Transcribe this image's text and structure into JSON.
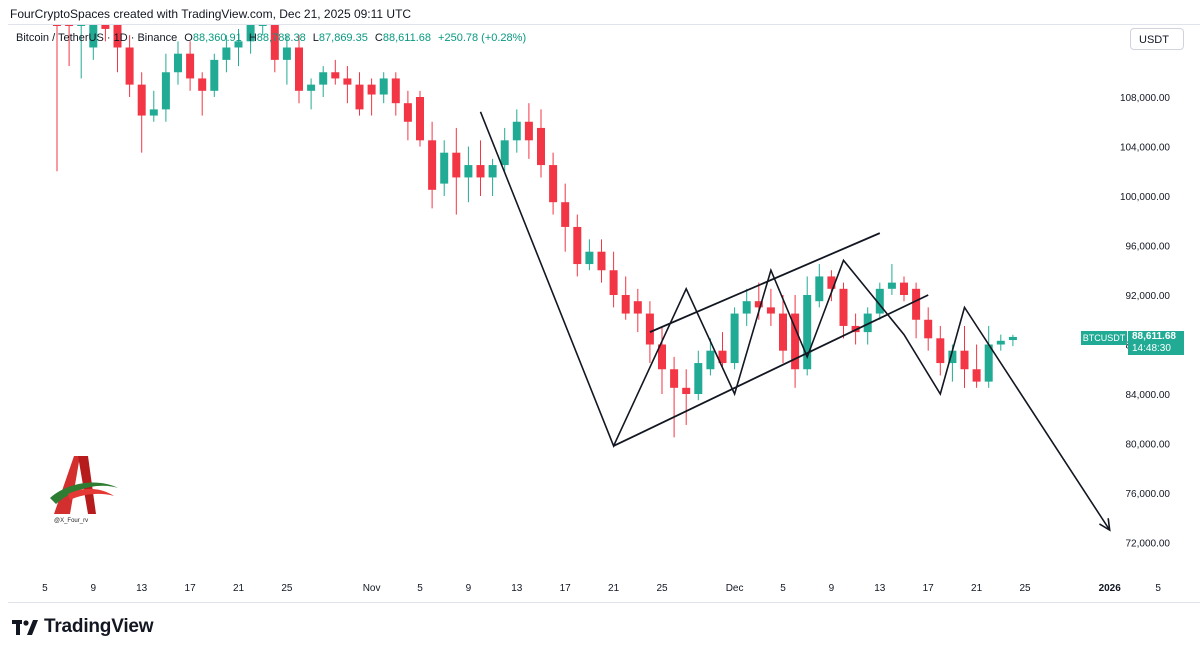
{
  "header": {
    "attribution": "FourCryptoSpaces created with TradingView.com, Dec 21, 2025 09:11 UTC"
  },
  "legend": {
    "symbol": "Bitcoin / TetherUS · 1D · Binance",
    "open_label": "O",
    "open": "88,360.91",
    "high_label": "H",
    "high": "88,788.38",
    "low_label": "L",
    "low": "87,869.35",
    "close_label": "C",
    "close": "88,611.68",
    "change": "+250.78 (+0.28%)"
  },
  "unit_button": "USDT",
  "price_tag": {
    "symbol": "BTCUSDT",
    "price": "88,611.68",
    "countdown": "14:48:30"
  },
  "footer": {
    "brand": "TradingView"
  },
  "watermark": {
    "handle": "@X_Four_rv"
  },
  "colors": {
    "up": "#22ab94",
    "down": "#f23645",
    "accent": "#22ab94",
    "text": "#131722"
  },
  "chart_data": {
    "type": "candlestick",
    "title": "Bitcoin / TetherUS · 1D · Binance",
    "ylabel": "USDT",
    "ylim": [
      70000,
      113000
    ],
    "yticks": [
      {
        "v": 108000,
        "label": "108,000.00"
      },
      {
        "v": 104000,
        "label": "104,000.00"
      },
      {
        "v": 100000,
        "label": "100,000.00"
      },
      {
        "v": 96000,
        "label": "96,000.00"
      },
      {
        "v": 92000,
        "label": "92,000.00"
      },
      {
        "v": 88000,
        "label": "88,000.00"
      },
      {
        "v": 84000,
        "label": "84,000.00"
      },
      {
        "v": 80000,
        "label": "80,000.00"
      },
      {
        "v": 76000,
        "label": "76,000.00"
      },
      {
        "v": 72000,
        "label": "72,000.00"
      }
    ],
    "xticks": [
      {
        "d": -1,
        "label": "5"
      },
      {
        "d": 3,
        "label": "9"
      },
      {
        "d": 7,
        "label": "13"
      },
      {
        "d": 11,
        "label": "17"
      },
      {
        "d": 15,
        "label": "21"
      },
      {
        "d": 19,
        "label": "25"
      },
      {
        "d": 26,
        "label": "Nov"
      },
      {
        "d": 30,
        "label": "5"
      },
      {
        "d": 34,
        "label": "9"
      },
      {
        "d": 38,
        "label": "13"
      },
      {
        "d": 42,
        "label": "17"
      },
      {
        "d": 46,
        "label": "21"
      },
      {
        "d": 50,
        "label": "25"
      },
      {
        "d": 56,
        "label": "Dec"
      },
      {
        "d": 60,
        "label": "5"
      },
      {
        "d": 64,
        "label": "9"
      },
      {
        "d": 68,
        "label": "13"
      },
      {
        "d": 72,
        "label": "17"
      },
      {
        "d": 76,
        "label": "21"
      },
      {
        "d": 80,
        "label": "25"
      },
      {
        "d": 87,
        "label": "2026"
      },
      {
        "d": 91,
        "label": "5"
      }
    ],
    "candles": [
      {
        "d": 0,
        "o": 120000,
        "h": 121000,
        "l": 102000,
        "c": 119000
      },
      {
        "d": 1,
        "o": 122000,
        "h": 123000,
        "l": 110500,
        "c": 115000
      },
      {
        "d": 2,
        "o": 114000,
        "h": 123000,
        "l": 109500,
        "c": 116000
      },
      {
        "d": 3,
        "o": 112000,
        "h": 124000,
        "l": 111000,
        "c": 121000
      },
      {
        "d": 4,
        "o": 117000,
        "h": 118000,
        "l": 112500,
        "c": 113500
      },
      {
        "d": 5,
        "o": 114500,
        "h": 116000,
        "l": 110000,
        "c": 112000
      },
      {
        "d": 6,
        "o": 112000,
        "h": 113000,
        "l": 108000,
        "c": 109000
      },
      {
        "d": 7,
        "o": 109000,
        "h": 110000,
        "l": 103500,
        "c": 106500
      },
      {
        "d": 8,
        "o": 106500,
        "h": 108500,
        "l": 106000,
        "c": 107000
      },
      {
        "d": 9,
        "o": 107000,
        "h": 111500,
        "l": 106000,
        "c": 110000
      },
      {
        "d": 10,
        "o": 110000,
        "h": 112500,
        "l": 109000,
        "c": 111500
      },
      {
        "d": 11,
        "o": 111500,
        "h": 112500,
        "l": 108500,
        "c": 109500
      },
      {
        "d": 12,
        "o": 109500,
        "h": 110000,
        "l": 106500,
        "c": 108500
      },
      {
        "d": 13,
        "o": 108500,
        "h": 111500,
        "l": 108000,
        "c": 111000
      },
      {
        "d": 14,
        "o": 111000,
        "h": 113000,
        "l": 110000,
        "c": 112000
      },
      {
        "d": 15,
        "o": 112000,
        "h": 113500,
        "l": 110500,
        "c": 112500
      },
      {
        "d": 16,
        "o": 112500,
        "h": 114500,
        "l": 111500,
        "c": 114000
      },
      {
        "d": 17,
        "o": 114000,
        "h": 116500,
        "l": 113000,
        "c": 115500
      },
      {
        "d": 18,
        "o": 115000,
        "h": 116000,
        "l": 110000,
        "c": 111000
      },
      {
        "d": 19,
        "o": 111000,
        "h": 113000,
        "l": 109000,
        "c": 112000
      },
      {
        "d": 20,
        "o": 112000,
        "h": 113000,
        "l": 107500,
        "c": 108500
      },
      {
        "d": 21,
        "o": 108500,
        "h": 109500,
        "l": 107000,
        "c": 109000
      },
      {
        "d": 22,
        "o": 109000,
        "h": 110500,
        "l": 108000,
        "c": 110000
      },
      {
        "d": 23,
        "o": 110000,
        "h": 111000,
        "l": 109000,
        "c": 109500
      },
      {
        "d": 24,
        "o": 109500,
        "h": 110500,
        "l": 107500,
        "c": 109000
      },
      {
        "d": 25,
        "o": 109000,
        "h": 110000,
        "l": 106500,
        "c": 107000
      },
      {
        "d": 26,
        "o": 109000,
        "h": 109500,
        "l": 106500,
        "c": 108200
      },
      {
        "d": 27,
        "o": 108200,
        "h": 110000,
        "l": 107500,
        "c": 109500
      },
      {
        "d": 28,
        "o": 109500,
        "h": 110000,
        "l": 106500,
        "c": 107500
      },
      {
        "d": 29,
        "o": 107500,
        "h": 108500,
        "l": 104500,
        "c": 106000
      },
      {
        "d": 30,
        "o": 108000,
        "h": 108500,
        "l": 104000,
        "c": 104500
      },
      {
        "d": 31,
        "o": 104500,
        "h": 106000,
        "l": 99000,
        "c": 100500
      },
      {
        "d": 32,
        "o": 101000,
        "h": 104500,
        "l": 100000,
        "c": 103500
      },
      {
        "d": 33,
        "o": 103500,
        "h": 105500,
        "l": 98500,
        "c": 101500
      },
      {
        "d": 34,
        "o": 101500,
        "h": 104000,
        "l": 99500,
        "c": 102500
      },
      {
        "d": 35,
        "o": 102500,
        "h": 104500,
        "l": 100000,
        "c": 101500
      },
      {
        "d": 36,
        "o": 101500,
        "h": 103000,
        "l": 100000,
        "c": 102500
      },
      {
        "d": 37,
        "o": 102500,
        "h": 105500,
        "l": 102000,
        "c": 104500
      },
      {
        "d": 38,
        "o": 104500,
        "h": 107000,
        "l": 103500,
        "c": 106000
      },
      {
        "d": 39,
        "o": 106000,
        "h": 107500,
        "l": 103000,
        "c": 104500
      },
      {
        "d": 40,
        "o": 105500,
        "h": 107000,
        "l": 101500,
        "c": 102500
      },
      {
        "d": 41,
        "o": 102500,
        "h": 103500,
        "l": 98500,
        "c": 99500
      },
      {
        "d": 42,
        "o": 99500,
        "h": 101000,
        "l": 95500,
        "c": 97500
      },
      {
        "d": 43,
        "o": 97500,
        "h": 98500,
        "l": 93500,
        "c": 94500
      },
      {
        "d": 44,
        "o": 94500,
        "h": 96500,
        "l": 94000,
        "c": 95500
      },
      {
        "d": 45,
        "o": 95500,
        "h": 96500,
        "l": 93000,
        "c": 94000
      },
      {
        "d": 46,
        "o": 94000,
        "h": 95500,
        "l": 91000,
        "c": 92000
      },
      {
        "d": 47,
        "o": 92000,
        "h": 93500,
        "l": 90000,
        "c": 90500
      },
      {
        "d": 48,
        "o": 91500,
        "h": 92500,
        "l": 89000,
        "c": 90500
      },
      {
        "d": 49,
        "o": 90500,
        "h": 91500,
        "l": 86500,
        "c": 88000
      },
      {
        "d": 50,
        "o": 88000,
        "h": 89500,
        "l": 84000,
        "c": 86000
      },
      {
        "d": 51,
        "o": 86000,
        "h": 87000,
        "l": 80500,
        "c": 84500
      },
      {
        "d": 52,
        "o": 84500,
        "h": 86000,
        "l": 81500,
        "c": 84000
      },
      {
        "d": 53,
        "o": 84000,
        "h": 87500,
        "l": 83500,
        "c": 86500
      },
      {
        "d": 54,
        "o": 86000,
        "h": 88500,
        "l": 85500,
        "c": 87500
      },
      {
        "d": 55,
        "o": 87500,
        "h": 89000,
        "l": 86000,
        "c": 86500
      },
      {
        "d": 56,
        "o": 86500,
        "h": 91000,
        "l": 86000,
        "c": 90500
      },
      {
        "d": 57,
        "o": 90500,
        "h": 92500,
        "l": 89500,
        "c": 91500
      },
      {
        "d": 58,
        "o": 91500,
        "h": 93000,
        "l": 90000,
        "c": 91000
      },
      {
        "d": 59,
        "o": 91000,
        "h": 92500,
        "l": 89500,
        "c": 90500
      },
      {
        "d": 60,
        "o": 90500,
        "h": 92000,
        "l": 86500,
        "c": 87500
      },
      {
        "d": 61,
        "o": 90500,
        "h": 92000,
        "l": 84500,
        "c": 86000
      },
      {
        "d": 62,
        "o": 86000,
        "h": 93500,
        "l": 85500,
        "c": 92000
      },
      {
        "d": 63,
        "o": 91500,
        "h": 94500,
        "l": 91000,
        "c": 93500
      },
      {
        "d": 64,
        "o": 93500,
        "h": 94000,
        "l": 91500,
        "c": 92500
      },
      {
        "d": 65,
        "o": 92500,
        "h": 93000,
        "l": 88500,
        "c": 89500
      },
      {
        "d": 66,
        "o": 89500,
        "h": 90500,
        "l": 88000,
        "c": 89000
      },
      {
        "d": 67,
        "o": 89000,
        "h": 91000,
        "l": 88000,
        "c": 90500
      },
      {
        "d": 68,
        "o": 90500,
        "h": 93000,
        "l": 90000,
        "c": 92500
      },
      {
        "d": 69,
        "o": 92500,
        "h": 94500,
        "l": 92000,
        "c": 93000
      },
      {
        "d": 70,
        "o": 93000,
        "h": 93500,
        "l": 91500,
        "c": 92000
      },
      {
        "d": 71,
        "o": 92500,
        "h": 93000,
        "l": 88500,
        "c": 90000
      },
      {
        "d": 72,
        "o": 90000,
        "h": 91000,
        "l": 87500,
        "c": 88500
      },
      {
        "d": 73,
        "o": 88500,
        "h": 89500,
        "l": 85500,
        "c": 86500
      },
      {
        "d": 74,
        "o": 86500,
        "h": 88000,
        "l": 85000,
        "c": 87500
      },
      {
        "d": 75,
        "o": 87500,
        "h": 89500,
        "l": 84500,
        "c": 86000
      },
      {
        "d": 76,
        "o": 86000,
        "h": 88000,
        "l": 84500,
        "c": 85000
      },
      {
        "d": 77,
        "o": 85000,
        "h": 89500,
        "l": 84500,
        "c": 88000
      },
      {
        "d": 78,
        "o": 88000,
        "h": 88800,
        "l": 87500,
        "c": 88300
      },
      {
        "d": 79,
        "o": 88360.91,
        "h": 88788.38,
        "l": 87869.35,
        "c": 88611.68
      }
    ],
    "drawings": {
      "zigzag": [
        [
          35,
          106800
        ],
        [
          46,
          79800
        ],
        [
          52,
          92500
        ],
        [
          56,
          84000
        ],
        [
          59,
          94000
        ],
        [
          62,
          87000
        ],
        [
          65,
          94800
        ],
        [
          70,
          88800
        ],
        [
          73,
          84000
        ],
        [
          75,
          91000
        ],
        [
          87,
          73000
        ]
      ],
      "upper_line": [
        [
          49,
          89000
        ],
        [
          68,
          97000
        ]
      ],
      "lower_line": [
        [
          46,
          79800
        ],
        [
          72,
          92000
        ]
      ]
    }
  }
}
